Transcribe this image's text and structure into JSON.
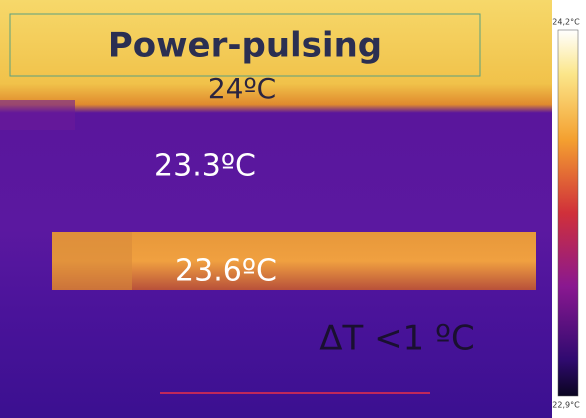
{
  "title": "Power-pulsing",
  "annotations": {
    "top": "24ºC",
    "middle": "23.3ºC",
    "stripe": "23.6ºC",
    "delta": "ΔT <1 ºC"
  },
  "colorbar": {
    "max_label": "24,2°C",
    "min_label": "22,9°C"
  }
}
